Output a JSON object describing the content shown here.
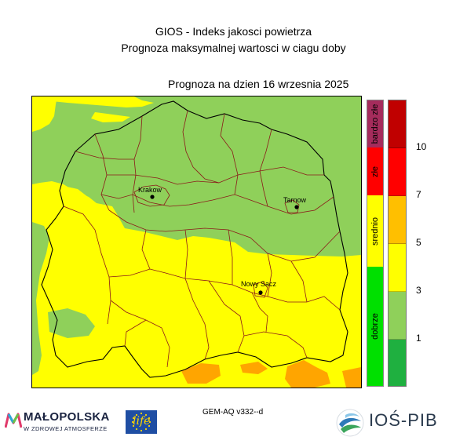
{
  "header": {
    "title_line1": "GIOS - Indeks jakosci powietrza",
    "title_line2": "Prognoza maksymalnej wartosci w ciagu doby",
    "date_label": "Prognoza na dzien  16 wrzesnia 2025"
  },
  "map": {
    "region": "Małopolska",
    "cities": [
      {
        "name": "Krakow"
      },
      {
        "name": "Tarnow"
      },
      {
        "name": "Nowy Sacz"
      }
    ],
    "category_colors": {
      "dobrze": "#00e000",
      "srednio": "#ffff00",
      "zle": "#ff0000",
      "bardzo_zle": "#a52c5c",
      "area_green": "#8fd05a",
      "area_yellow": "#ffff00",
      "area_orange": "#ffa500",
      "boundary_brown": "#8b1a1a",
      "boundary_black": "#000000"
    }
  },
  "legend": {
    "categories": [
      {
        "label": "bardzo złe",
        "color": "#a52c5c"
      },
      {
        "label": "złe",
        "color": "#ff0000"
      },
      {
        "label": "srednio",
        "color": "#ffff00"
      },
      {
        "label": "dobrze",
        "color": "#00e000"
      }
    ],
    "levels": [
      {
        "color": "#c00000"
      },
      {
        "color": "#ff0000"
      },
      {
        "color": "#ffbf00"
      },
      {
        "color": "#ffff00"
      },
      {
        "color": "#8fd05a"
      },
      {
        "color": "#1fb040"
      }
    ],
    "ticks": [
      "10",
      "7",
      "5",
      "3",
      "1"
    ]
  },
  "footer": {
    "model_label": "GEM-AQ v332--d",
    "logo_malopolska_text": "MAŁOPOLSKA",
    "logo_malopolska_sub": "W ZDROWEJ ATMOSFERZE",
    "logo_eu_life_text": "life",
    "logo_ios_text": "IOŚ-PIB"
  }
}
